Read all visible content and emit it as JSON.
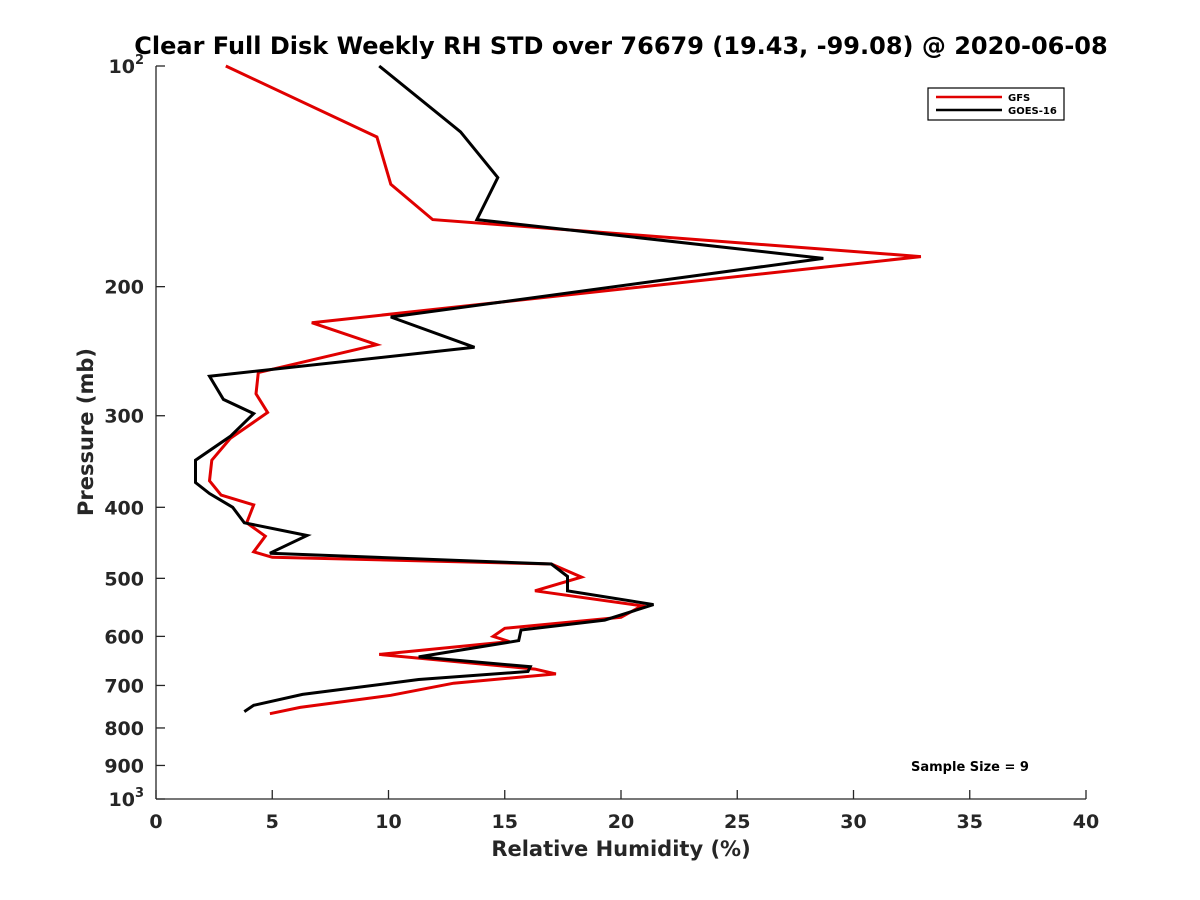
{
  "chart_data": {
    "type": "line",
    "title": "Clear Full Disk Weekly RH STD over 76679 (19.43, -99.08) @ 2020-06-08",
    "xlabel": "Relative Humidity (%)",
    "ylabel": "Pressure (mb)",
    "xlim": [
      0,
      40
    ],
    "ylim": [
      100,
      1000
    ],
    "yscale": "log",
    "y_reversed": true,
    "grid": false,
    "x_ticks": [
      0,
      5,
      10,
      15,
      20,
      25,
      30,
      35,
      40
    ],
    "y_ticks": [
      {
        "value": 100,
        "base": "10",
        "exp": "2"
      },
      {
        "value": 200,
        "text": "200"
      },
      {
        "value": 300,
        "text": "300"
      },
      {
        "value": 400,
        "text": "400"
      },
      {
        "value": 500,
        "text": "500"
      },
      {
        "value": 600,
        "text": "600"
      },
      {
        "value": 700,
        "text": "700"
      },
      {
        "value": 800,
        "text": "800"
      },
      {
        "value": 900,
        "text": "900"
      },
      {
        "value": 1000,
        "base": "10",
        "exp": "3"
      }
    ],
    "legend_position": "top-right",
    "annotation": "Sample Size = 9",
    "series": [
      {
        "name": "GFS",
        "color": "#e00000",
        "points": [
          [
            3.0,
            100
          ],
          [
            9.5,
            125
          ],
          [
            10.1,
            145
          ],
          [
            11.9,
            162
          ],
          [
            32.9,
            182
          ],
          [
            6.7,
            224
          ],
          [
            9.5,
            240
          ],
          [
            4.4,
            262
          ],
          [
            4.3,
            280
          ],
          [
            4.8,
            297
          ],
          [
            3.2,
            322
          ],
          [
            2.4,
            345
          ],
          [
            2.3,
            368
          ],
          [
            2.8,
            385
          ],
          [
            4.2,
            397
          ],
          [
            3.9,
            420
          ],
          [
            4.7,
            438
          ],
          [
            4.2,
            460
          ],
          [
            5.0,
            468
          ],
          [
            17.0,
            478
          ],
          [
            18.3,
            498
          ],
          [
            16.3,
            520
          ],
          [
            20.9,
            545
          ],
          [
            20.0,
            565
          ],
          [
            15.0,
            585
          ],
          [
            14.5,
            600
          ],
          [
            15.2,
            610
          ],
          [
            9.6,
            635
          ],
          [
            16.3,
            665
          ],
          [
            17.2,
            675
          ],
          [
            12.8,
            695
          ],
          [
            10.1,
            722
          ],
          [
            6.2,
            750
          ],
          [
            4.9,
            765
          ]
        ]
      },
      {
        "name": "GOES-16",
        "color": "#000000",
        "points": [
          [
            9.6,
            100
          ],
          [
            13.1,
            123
          ],
          [
            14.7,
            142
          ],
          [
            13.8,
            162
          ],
          [
            28.7,
            183
          ],
          [
            10.1,
            220
          ],
          [
            13.7,
            242
          ],
          [
            2.3,
            265
          ],
          [
            2.9,
            285
          ],
          [
            4.2,
            298
          ],
          [
            3.2,
            320
          ],
          [
            1.7,
            345
          ],
          [
            1.7,
            370
          ],
          [
            2.3,
            383
          ],
          [
            3.3,
            400
          ],
          [
            3.8,
            420
          ],
          [
            6.5,
            437
          ],
          [
            4.9,
            462
          ],
          [
            17.0,
            478
          ],
          [
            17.7,
            497
          ],
          [
            17.7,
            520
          ],
          [
            21.4,
            543
          ],
          [
            19.3,
            570
          ],
          [
            15.7,
            588
          ],
          [
            15.6,
            608
          ],
          [
            11.3,
            640
          ],
          [
            16.1,
            660
          ],
          [
            16.0,
            670
          ],
          [
            11.3,
            687
          ],
          [
            6.3,
            720
          ],
          [
            4.2,
            745
          ],
          [
            3.8,
            760
          ]
        ]
      }
    ]
  }
}
